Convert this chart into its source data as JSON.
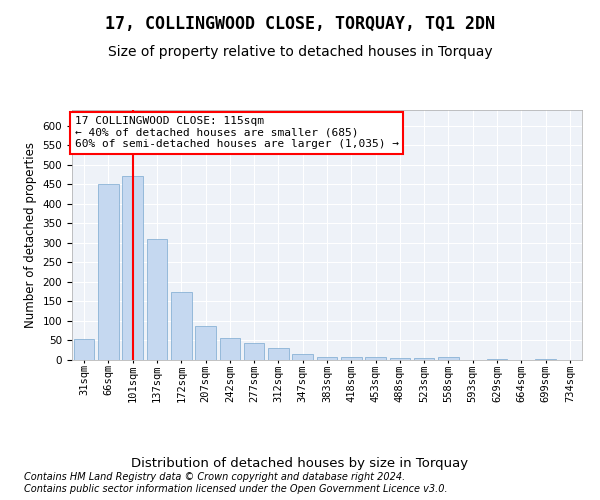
{
  "title": "17, COLLINGWOOD CLOSE, TORQUAY, TQ1 2DN",
  "subtitle": "Size of property relative to detached houses in Torquay",
  "xlabel": "Distribution of detached houses by size in Torquay",
  "ylabel": "Number of detached properties",
  "categories": [
    "31sqm",
    "66sqm",
    "101sqm",
    "137sqm",
    "172sqm",
    "207sqm",
    "242sqm",
    "277sqm",
    "312sqm",
    "347sqm",
    "383sqm",
    "418sqm",
    "453sqm",
    "488sqm",
    "523sqm",
    "558sqm",
    "593sqm",
    "629sqm",
    "664sqm",
    "699sqm",
    "734sqm"
  ],
  "values": [
    53,
    450,
    470,
    310,
    175,
    88,
    57,
    43,
    30,
    15,
    8,
    7,
    7,
    6,
    5,
    7,
    0,
    3,
    0,
    3,
    0
  ],
  "bar_color": "#c5d8f0",
  "bar_edge_color": "#7aa8d0",
  "red_line_x": 2,
  "ylim": [
    0,
    640
  ],
  "yticks": [
    0,
    50,
    100,
    150,
    200,
    250,
    300,
    350,
    400,
    450,
    500,
    550,
    600
  ],
  "annotation_line1": "17 COLLINGWOOD CLOSE: 115sqm",
  "annotation_line2": "← 40% of detached houses are smaller (685)",
  "annotation_line3": "60% of semi-detached houses are larger (1,035) →",
  "footer_line1": "Contains HM Land Registry data © Crown copyright and database right 2024.",
  "footer_line2": "Contains public sector information licensed under the Open Government Licence v3.0.",
  "title_fontsize": 12,
  "subtitle_fontsize": 10,
  "xlabel_fontsize": 9.5,
  "ylabel_fontsize": 8.5,
  "tick_fontsize": 7.5,
  "annotation_fontsize": 8,
  "footer_fontsize": 7,
  "background_color": "#eef2f8",
  "grid_color": "#ffffff",
  "fig_bg_color": "#ffffff"
}
